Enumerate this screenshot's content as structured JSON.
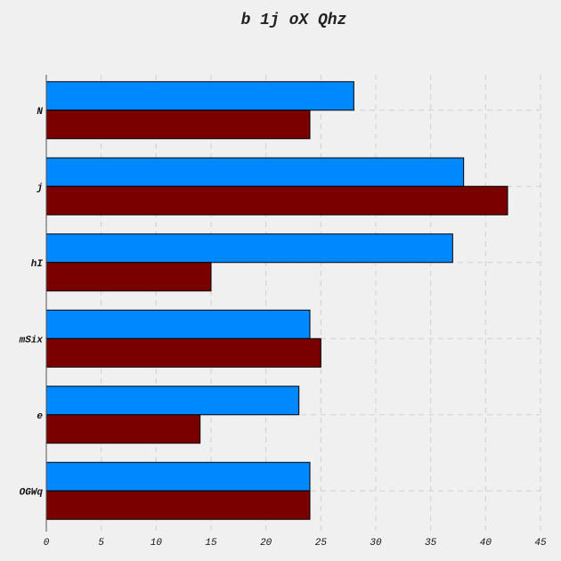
{
  "chart_data": {
    "type": "bar",
    "orientation": "horizontal",
    "title": "b 1j oX Qhz",
    "xlabel": "",
    "ylabel": "",
    "xlim": [
      0,
      45
    ],
    "xticks": [
      0,
      5,
      10,
      15,
      20,
      25,
      30,
      35,
      40,
      45
    ],
    "grid": true,
    "categories": [
      "N",
      "j",
      "hI",
      "mSix",
      "e",
      "OGWq"
    ],
    "series": [
      {
        "color": "#0088ff",
        "values": [
          28,
          38,
          37,
          24,
          23,
          24
        ]
      },
      {
        "color": "#7a0000",
        "values": [
          24,
          42,
          15,
          25,
          14,
          24
        ]
      }
    ]
  }
}
